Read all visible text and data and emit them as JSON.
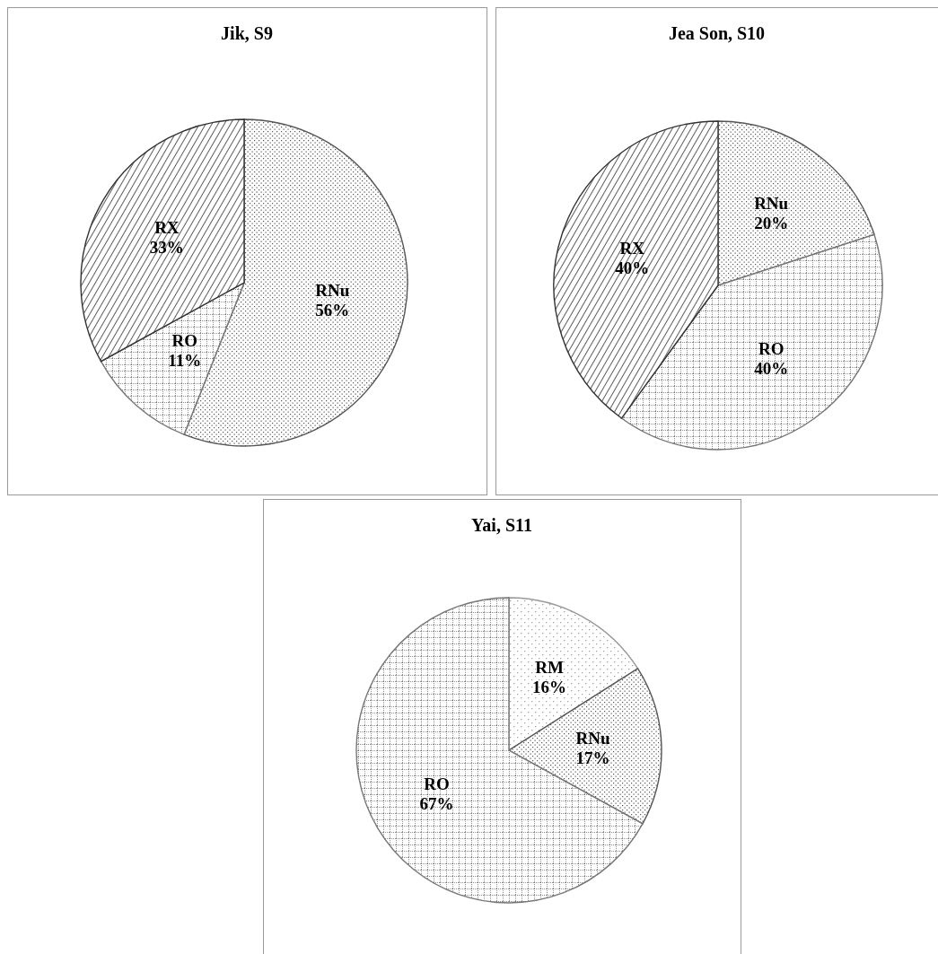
{
  "chart_data": [
    {
      "type": "pie",
      "title": "Jik, S9",
      "categories": [
        "RNu",
        "RO",
        "RX"
      ],
      "values": [
        56,
        11,
        33
      ],
      "colors": [
        "#555555",
        "#777777",
        "#333333"
      ],
      "value_labels": [
        "56%",
        "11%",
        "33%"
      ],
      "legend": false
    },
    {
      "type": "pie",
      "title": "Jea Son, S10",
      "categories": [
        "RNu",
        "RO",
        "RX"
      ],
      "values": [
        20,
        40,
        40
      ],
      "colors": [
        "#555555",
        "#777777",
        "#333333"
      ],
      "value_labels": [
        "20%",
        "40%",
        "40%"
      ],
      "legend": false
    },
    {
      "type": "pie",
      "title": "Yai, S11",
      "categories": [
        "RM",
        "RNu",
        "RO"
      ],
      "values": [
        16,
        17,
        67
      ],
      "colors": [
        "#999999",
        "#555555",
        "#777777"
      ],
      "value_labels": [
        "16%",
        "17%",
        "67%"
      ],
      "legend": false
    }
  ]
}
